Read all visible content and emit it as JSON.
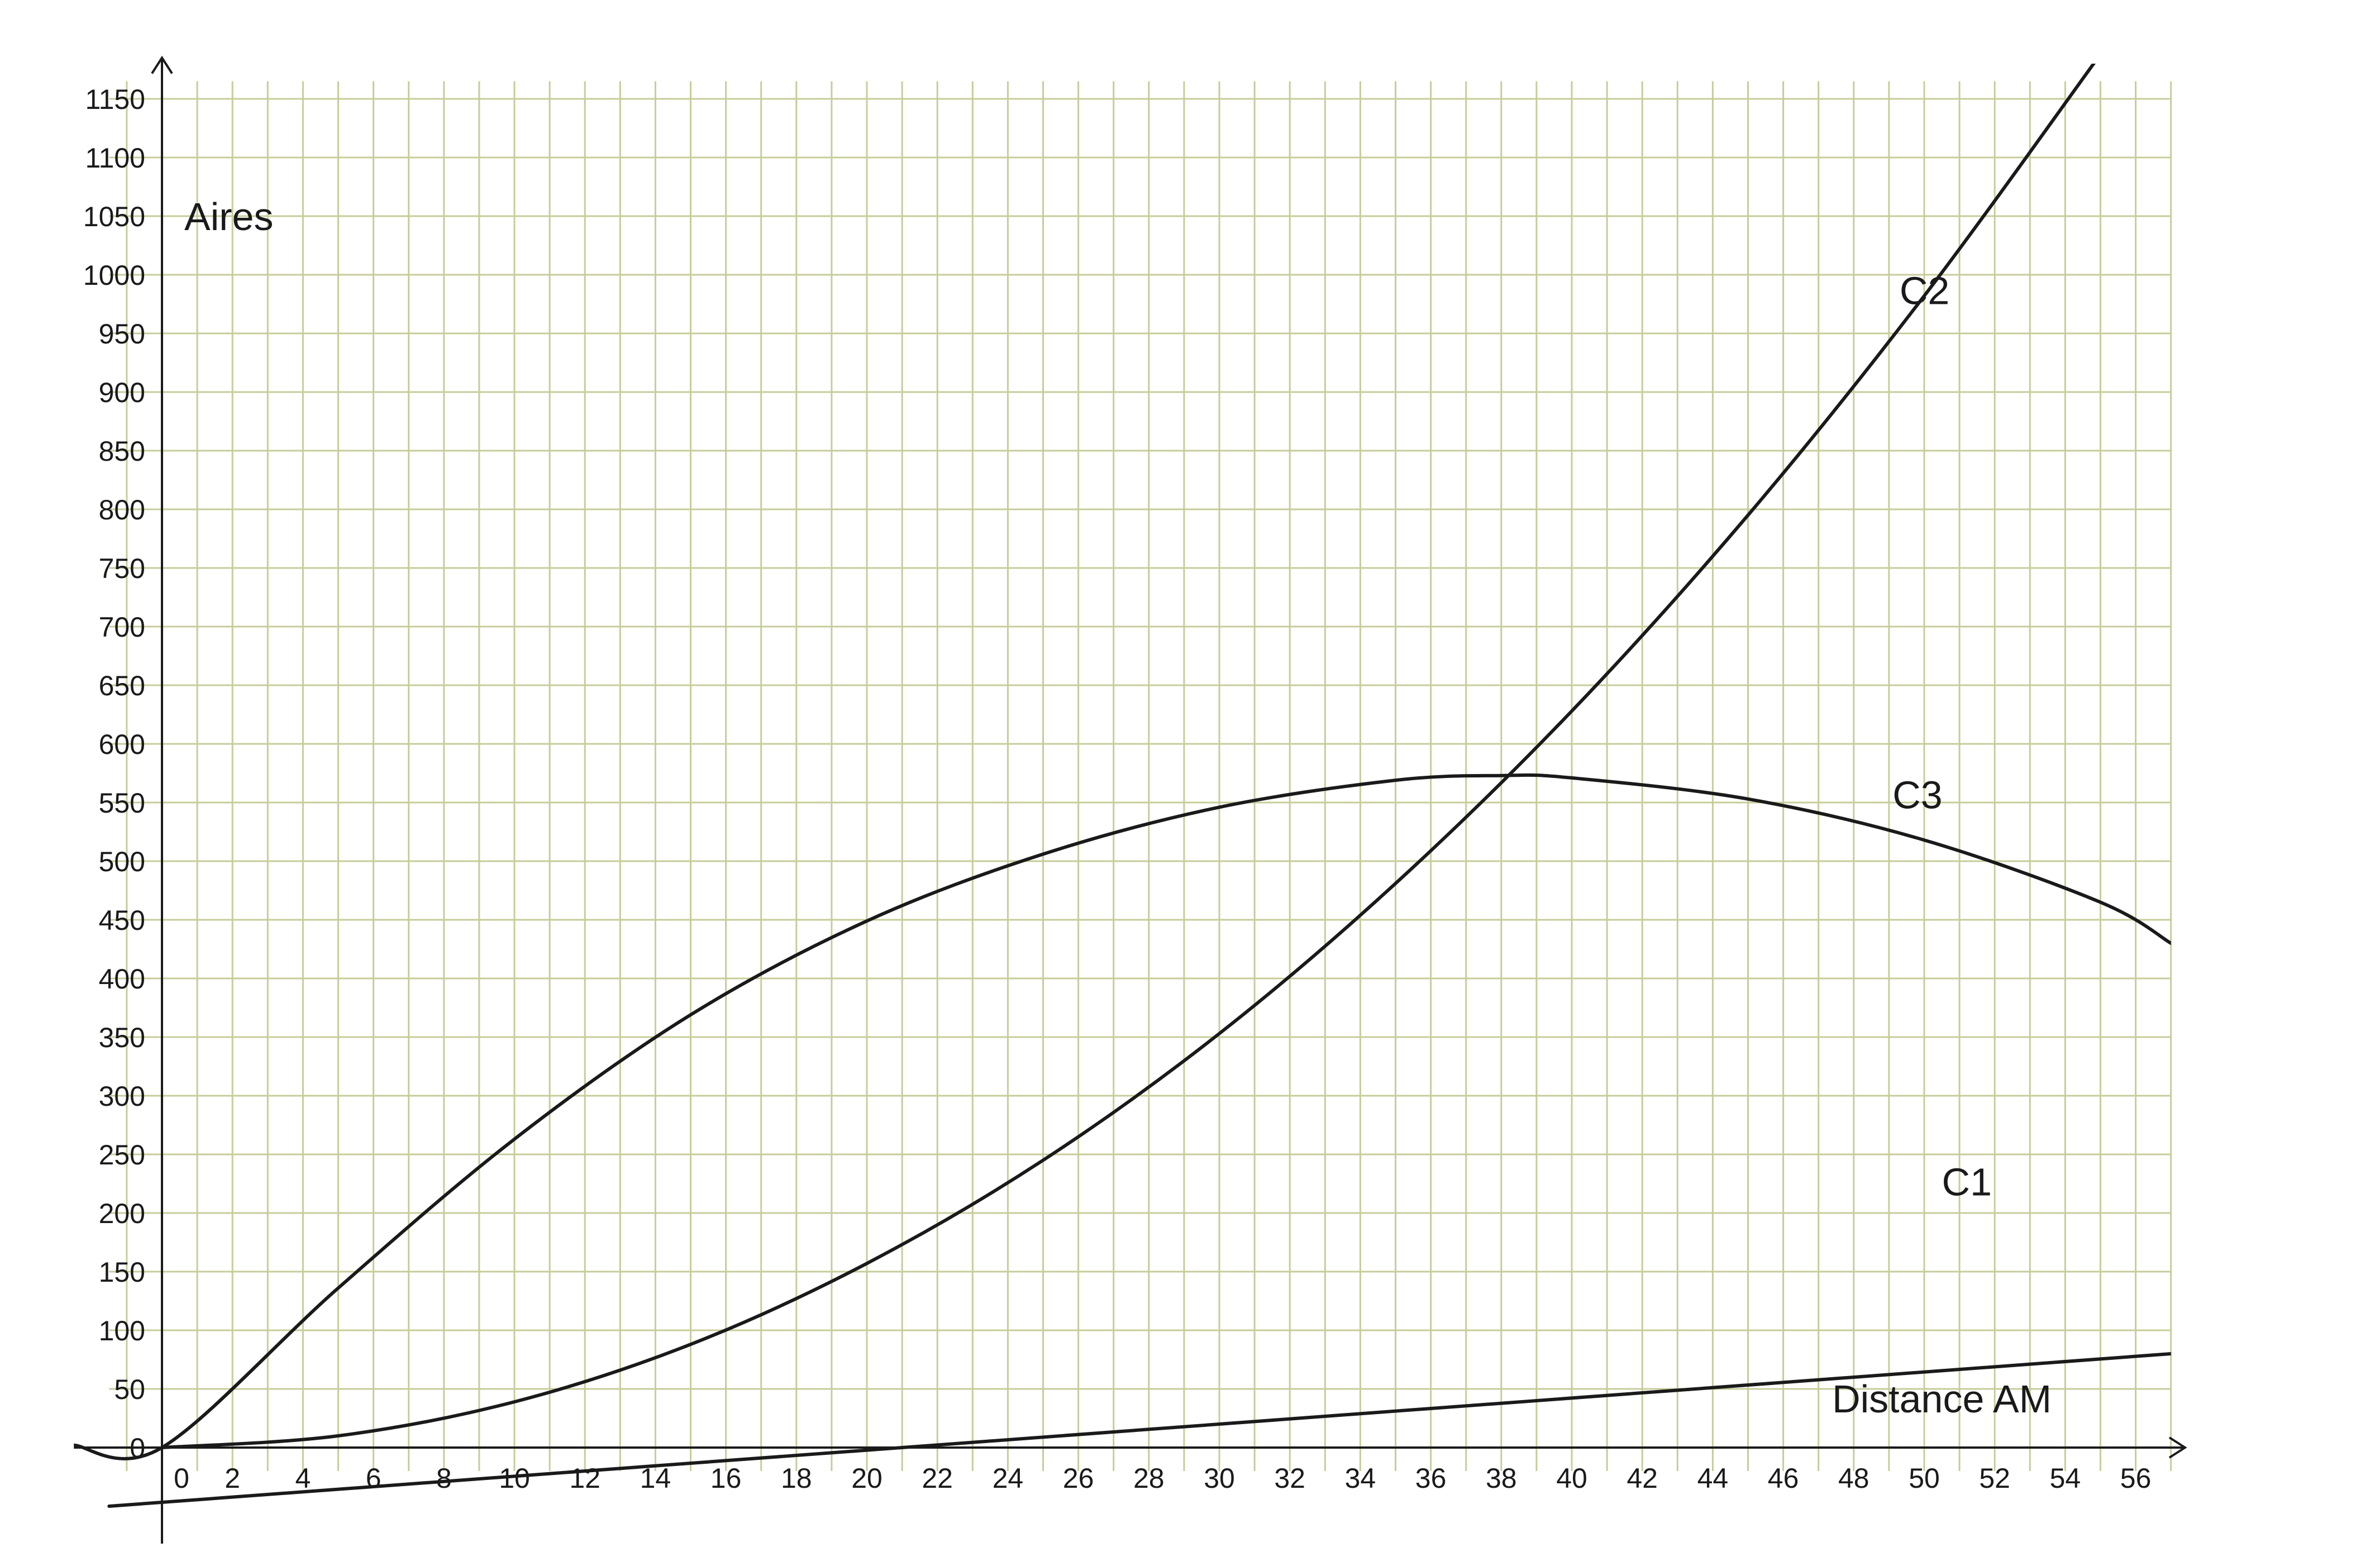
{
  "chart_data": {
    "type": "line",
    "ylabel": "Aires",
    "xlabel": "Distance AM",
    "xlim": [
      -2.5,
      57
    ],
    "ylim": [
      -50,
      1180
    ],
    "x_ticks": [
      0,
      2,
      4,
      6,
      8,
      10,
      12,
      14,
      16,
      18,
      20,
      22,
      24,
      26,
      28,
      30,
      32,
      34,
      36,
      38,
      40,
      42,
      44,
      46,
      48,
      50,
      52,
      54,
      56
    ],
    "y_ticks": [
      0,
      50,
      100,
      150,
      200,
      250,
      300,
      350,
      400,
      450,
      500,
      550,
      600,
      650,
      700,
      750,
      800,
      850,
      900,
      950,
      1000,
      1050,
      1100,
      1150
    ],
    "x_minor_step": 1,
    "y_minor_step": 50,
    "grid": true,
    "grid_color": "#c8cc9a",
    "line_color": "#1a1a1a",
    "series": [
      {
        "name": "C1",
        "x": [
          -1.5,
          57
        ],
        "y": [
          -50,
          80
        ]
      },
      {
        "name": "C2",
        "x": [
          0,
          5,
          10,
          15,
          20,
          25,
          30,
          35,
          40,
          45,
          50,
          55
        ],
        "y": [
          0,
          10,
          39,
          88,
          157,
          245,
          353,
          481,
          628,
          795,
          982,
          1188
        ]
      },
      {
        "name": "C3",
        "x": [
          -2.5,
          0,
          5,
          10,
          15,
          20,
          25,
          30,
          35,
          38,
          40,
          45,
          50,
          55,
          57
        ],
        "y": [
          2,
          0,
          136,
          263,
          369,
          449,
          506,
          546,
          569,
          573,
          571,
          553,
          518,
          465,
          430
        ]
      }
    ]
  }
}
